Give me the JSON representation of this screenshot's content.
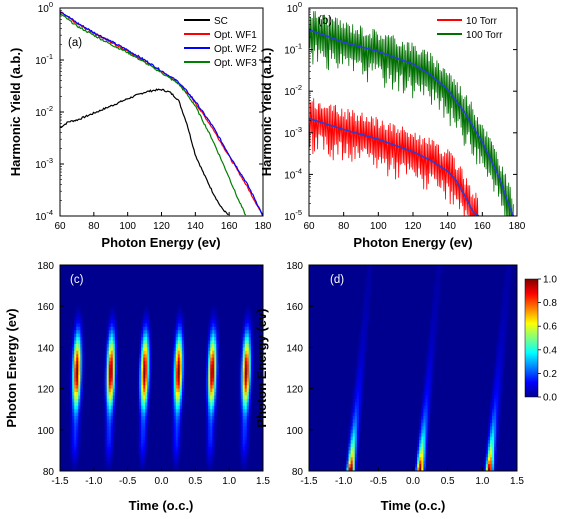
{
  "chart_data": [
    {
      "panel": "(a)",
      "type": "line",
      "xlabel": "Photon Energy (ev)",
      "ylabel": "Harmonic Yield (a.b.)",
      "xlim": [
        60,
        180
      ],
      "ylim": [
        0.0001,
        1
      ],
      "yscale": "log",
      "x_ticks": [
        "60",
        "80",
        "100",
        "120",
        "140",
        "160",
        "180"
      ],
      "y_ticks": [
        {
          "base": "10",
          "exp": "0"
        },
        {
          "base": "10",
          "exp": "-1"
        },
        {
          "base": "10",
          "exp": "-2"
        },
        {
          "base": "10",
          "exp": "-3"
        },
        {
          "base": "10",
          "exp": "-4"
        }
      ],
      "legend_position": "top-right",
      "series": [
        {
          "name": "SC",
          "color": "#000000",
          "x": [
            60,
            65,
            70,
            80,
            90,
            100,
            110,
            115,
            120,
            125,
            130,
            135,
            140,
            145,
            150,
            155,
            160
          ],
          "y": [
            0.005,
            0.0065,
            0.007,
            0.0095,
            0.013,
            0.018,
            0.024,
            0.026,
            0.027,
            0.024,
            0.017,
            0.006,
            0.0015,
            0.00065,
            0.0003,
            0.00015,
            0.0001
          ]
        },
        {
          "name": "Opt. WF1",
          "color": "#ff0000",
          "x": [
            60,
            70,
            80,
            90,
            100,
            110,
            120,
            130,
            135,
            140,
            150,
            160,
            170,
            175,
            180
          ],
          "y": [
            0.85,
            0.5,
            0.33,
            0.22,
            0.15,
            0.095,
            0.06,
            0.036,
            0.024,
            0.015,
            0.005,
            0.0014,
            0.0004,
            0.0002,
            0.0001
          ]
        },
        {
          "name": "Opt. WF2",
          "color": "#0000ff",
          "x": [
            60,
            70,
            80,
            90,
            100,
            110,
            120,
            130,
            135,
            140,
            150,
            160,
            170,
            175,
            180
          ],
          "y": [
            0.88,
            0.52,
            0.34,
            0.23,
            0.155,
            0.1,
            0.062,
            0.038,
            0.025,
            0.016,
            0.0055,
            0.0015,
            0.00045,
            0.00022,
            0.0001
          ]
        },
        {
          "name": "Opt. WF3",
          "color": "#008000",
          "x": [
            60,
            70,
            80,
            90,
            100,
            110,
            120,
            130,
            135,
            140,
            150,
            160,
            165,
            170
          ],
          "y": [
            0.78,
            0.45,
            0.3,
            0.2,
            0.14,
            0.09,
            0.057,
            0.035,
            0.022,
            0.013,
            0.003,
            0.00055,
            0.00022,
            0.0001
          ]
        }
      ]
    },
    {
      "panel": "(b)",
      "type": "line",
      "xlabel": "Photon Energy (ev)",
      "ylabel": "Harmonic Yield (a.b.)",
      "xlim": [
        60,
        180
      ],
      "ylim": [
        1e-05,
        1
      ],
      "yscale": "log",
      "x_ticks": [
        "60",
        "80",
        "100",
        "120",
        "140",
        "160",
        "180"
      ],
      "y_ticks": [
        {
          "base": "10",
          "exp": "0"
        },
        {
          "base": "10",
          "exp": "-1"
        },
        {
          "base": "10",
          "exp": "-2"
        },
        {
          "base": "10",
          "exp": "-3"
        },
        {
          "base": "10",
          "exp": "-4"
        },
        {
          "base": "10",
          "exp": "-5"
        }
      ],
      "legend_position": "top-right",
      "series": [
        {
          "name": "10 Torr",
          "color": "#ff0000",
          "x": [
            60,
            80,
            100,
            120,
            130,
            140,
            145,
            150,
            155,
            158
          ],
          "y": [
            0.0022,
            0.0012,
            0.0007,
            0.00035,
            0.00022,
            0.00012,
            7e-05,
            3e-05,
            1.2e-05,
            1e-05
          ]
        },
        {
          "name": "100 Torr",
          "color": "#007000",
          "x": [
            60,
            80,
            100,
            120,
            130,
            140,
            150,
            160,
            170,
            175,
            178
          ],
          "y": [
            0.3,
            0.15,
            0.09,
            0.045,
            0.025,
            0.011,
            0.003,
            0.0006,
            8e-05,
            2e-05,
            1e-05
          ]
        }
      ],
      "envelope_color": "#2a3fd6"
    },
    {
      "panel": "(c)",
      "type": "heatmap",
      "xlabel": "Time (o.c.)",
      "ylabel": "Photon Energy (ev)",
      "xlim": [
        -1.5,
        1.5
      ],
      "ylim": [
        80,
        180
      ],
      "x_ticks": [
        "-1.5",
        "-1.0",
        "-0.5",
        "0.0",
        "0.5",
        "1.0",
        "1.5"
      ],
      "y_ticks": [
        "80",
        "100",
        "120",
        "140",
        "160",
        "180"
      ],
      "bursts_time": [
        -1.25,
        -0.75,
        -0.25,
        0.25,
        0.75,
        1.25
      ],
      "peak_energy": 128
    },
    {
      "panel": "(d)",
      "type": "heatmap",
      "xlabel": "Time (o.c.)",
      "ylabel": "Photon Energy (ev)",
      "xlim": [
        -1.5,
        1.5
      ],
      "ylim": [
        80,
        180
      ],
      "x_ticks": [
        "-1.5",
        "-1.0",
        "-0.5",
        "0.0",
        "0.5",
        "1.0",
        "1.5"
      ],
      "y_ticks": [
        "80",
        "100",
        "120",
        "140",
        "160",
        "180"
      ],
      "bursts_time": [
        -1.0,
        0.0,
        1.0
      ],
      "peak_energy": 80,
      "colorbar": {
        "min": 0.0,
        "max": 1.0,
        "ticks": [
          "1.0",
          "0.8",
          "0.6",
          "0.4",
          "0.2",
          "0.0"
        ]
      }
    }
  ]
}
